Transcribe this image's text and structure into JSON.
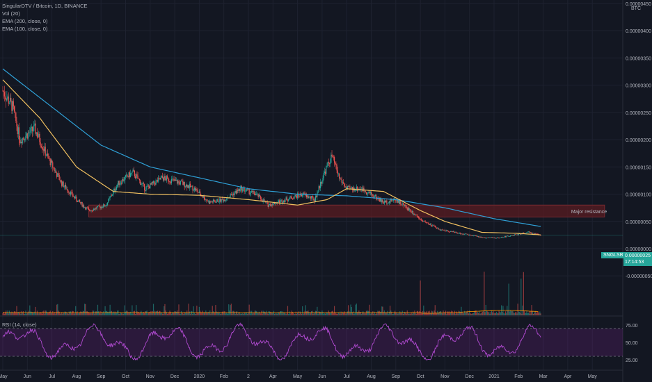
{
  "legend": {
    "title": "SingularDTV / Bitcoin, 1D, BINANCE",
    "vol": "Vol (20)",
    "ema200": "EMA (200, close, 0)",
    "ema100": "EMA (100, close, 0)"
  },
  "rsi_legend": "RSI (14, close)",
  "currency": "BTC",
  "price_scale_top": "0.00000450",
  "symbol_badge": "SNGLSBTC",
  "last_price": "0.00000025",
  "countdown": "17:14:53",
  "colors": {
    "background": "#131722",
    "up": "#26a69a",
    "down": "#ef5350",
    "ema200": "#2fa0d6",
    "ema100": "#f0c060",
    "rsi": "#9c27b0",
    "resistance_fill": "#5a1c22",
    "resistance_text": "#ef5350"
  },
  "chart_data": [
    {
      "type": "candlestick",
      "title": "SingularDTV / Bitcoin, 1D, BINANCE",
      "y_unit": "BTC",
      "ylim": [
        -1.3e-06,
        4.5e-06
      ],
      "y_ticks": [
        {
          "value": 4.5e-06,
          "label": "0.00000450"
        },
        {
          "value": 4e-06,
          "label": "0.00000400"
        },
        {
          "value": 3.5e-06,
          "label": "0.00000350"
        },
        {
          "value": 3e-06,
          "label": "0.00000300"
        },
        {
          "value": 2.5e-06,
          "label": "0.00000250"
        },
        {
          "value": 2e-06,
          "label": "0.00000200"
        },
        {
          "value": 1.5e-06,
          "label": "0.00000150"
        },
        {
          "value": 1e-06,
          "label": "0.00000100"
        },
        {
          "value": 5e-07,
          "label": "0.00000050"
        },
        {
          "value": 0.0,
          "label": "0.00000000"
        },
        {
          "value": -5e-07,
          "label": "-0.00000050"
        }
      ],
      "x_ticks": [
        {
          "month": 0,
          "label": "May"
        },
        {
          "month": 1,
          "label": "Jun"
        },
        {
          "month": 2,
          "label": "Jul"
        },
        {
          "month": 3,
          "label": "Aug"
        },
        {
          "month": 4,
          "label": "Sep"
        },
        {
          "month": 5,
          "label": "Oct"
        },
        {
          "month": 6,
          "label": "Nov"
        },
        {
          "month": 7,
          "label": "Dec"
        },
        {
          "month": 8,
          "label": "2020"
        },
        {
          "month": 9,
          "label": "Feb"
        },
        {
          "month": 10,
          "label": "2"
        },
        {
          "month": 11,
          "label": "Apr"
        },
        {
          "month": 12,
          "label": "May"
        },
        {
          "month": 13,
          "label": "Jun"
        },
        {
          "month": 14,
          "label": "Jul"
        },
        {
          "month": 15,
          "label": "Aug"
        },
        {
          "month": 16,
          "label": "Sep"
        },
        {
          "month": 17,
          "label": "Oct"
        },
        {
          "month": 18,
          "label": "Nov"
        },
        {
          "month": 19,
          "label": "Dec"
        },
        {
          "month": 20,
          "label": "2021"
        },
        {
          "month": 21,
          "label": "Feb"
        },
        {
          "month": 22,
          "label": "Mar"
        },
        {
          "month": 23,
          "label": "Apr"
        },
        {
          "month": 24,
          "label": "May"
        }
      ],
      "price_anchors_month_close": [
        [
          0,
          2.9e-06
        ],
        [
          0.4,
          2.6e-06
        ],
        [
          0.7,
          2e-06
        ],
        [
          1.3,
          2.2e-06
        ],
        [
          1.8,
          1.7e-06
        ],
        [
          2.4,
          1.2e-06
        ],
        [
          3.0,
          9e-07
        ],
        [
          3.5,
          7e-07
        ],
        [
          4.2,
          8e-07
        ],
        [
          4.7,
          1.2e-06
        ],
        [
          5.3,
          1.4e-06
        ],
        [
          5.8,
          1.1e-06
        ],
        [
          6.5,
          1.3e-06
        ],
        [
          7.3,
          1.2e-06
        ],
        [
          7.8,
          1.1e-06
        ],
        [
          8.4,
          8.5e-07
        ],
        [
          9.0,
          9e-07
        ],
        [
          9.7,
          1.1e-06
        ],
        [
          10.3,
          1e-06
        ],
        [
          10.8,
          8e-07
        ],
        [
          11.5,
          9e-07
        ],
        [
          12.2,
          1e-06
        ],
        [
          12.7,
          9e-07
        ],
        [
          13.1,
          1.4e-06
        ],
        [
          13.4,
          1.7e-06
        ],
        [
          13.7,
          1.3e-06
        ],
        [
          14.0,
          1.1e-06
        ],
        [
          14.6,
          1.1e-06
        ],
        [
          15.0,
          1e-06
        ],
        [
          15.5,
          8.5e-07
        ],
        [
          16.0,
          9e-07
        ],
        [
          16.6,
          7e-07
        ],
        [
          17.2,
          4.8e-07
        ],
        [
          17.8,
          3.5e-07
        ],
        [
          18.4,
          3e-07
        ],
        [
          19.0,
          2.5e-07
        ],
        [
          19.6,
          2e-07
        ],
        [
          20.2,
          2e-07
        ],
        [
          20.8,
          2.5e-07
        ],
        [
          21.4,
          3e-07
        ],
        [
          21.9,
          2.5e-07
        ]
      ],
      "ema200_month_value": [
        [
          0,
          3.3e-06
        ],
        [
          2,
          2.6e-06
        ],
        [
          4,
          1.9e-06
        ],
        [
          6,
          1.5e-06
        ],
        [
          8,
          1.3e-06
        ],
        [
          10,
          1.1e-06
        ],
        [
          12,
          1e-06
        ],
        [
          14,
          9.7e-07
        ],
        [
          16,
          9e-07
        ],
        [
          18,
          7.5e-07
        ],
        [
          20,
          5.5e-07
        ],
        [
          22,
          4e-07
        ]
      ],
      "ema100_month_value": [
        [
          0,
          3.1e-06
        ],
        [
          1.5,
          2.4e-06
        ],
        [
          3,
          1.5e-06
        ],
        [
          4.5,
          1.05e-06
        ],
        [
          6,
          1e-06
        ],
        [
          8,
          9.8e-07
        ],
        [
          10,
          9e-07
        ],
        [
          12,
          8e-07
        ],
        [
          13.2,
          9e-07
        ],
        [
          14,
          1.1e-06
        ],
        [
          15.5,
          1.05e-06
        ],
        [
          17,
          7e-07
        ],
        [
          18,
          5e-07
        ],
        [
          19.5,
          3e-07
        ],
        [
          21,
          2.8e-07
        ],
        [
          22,
          2.5e-07
        ]
      ],
      "resistance_zone": {
        "low": 5.8e-07,
        "high": 8e-07,
        "from_month": 3.5,
        "to_month": 24.5,
        "label": "Major resistance"
      },
      "last_close": 2.5e-07,
      "volume_spikes_month": [
        17.0,
        19.6,
        20.6,
        21.1,
        21.2
      ]
    },
    {
      "type": "line",
      "title": "RSI (14, close)",
      "ylim": [
        15,
        85
      ],
      "y_ticks": [
        {
          "value": 75,
          "label": "75.00"
        },
        {
          "value": 50,
          "label": "50.00"
        },
        {
          "value": 25,
          "label": "25.00"
        }
      ],
      "overbought": 70,
      "oversold": 30,
      "range_note": "oscillates roughly between 25 and 80"
    }
  ]
}
